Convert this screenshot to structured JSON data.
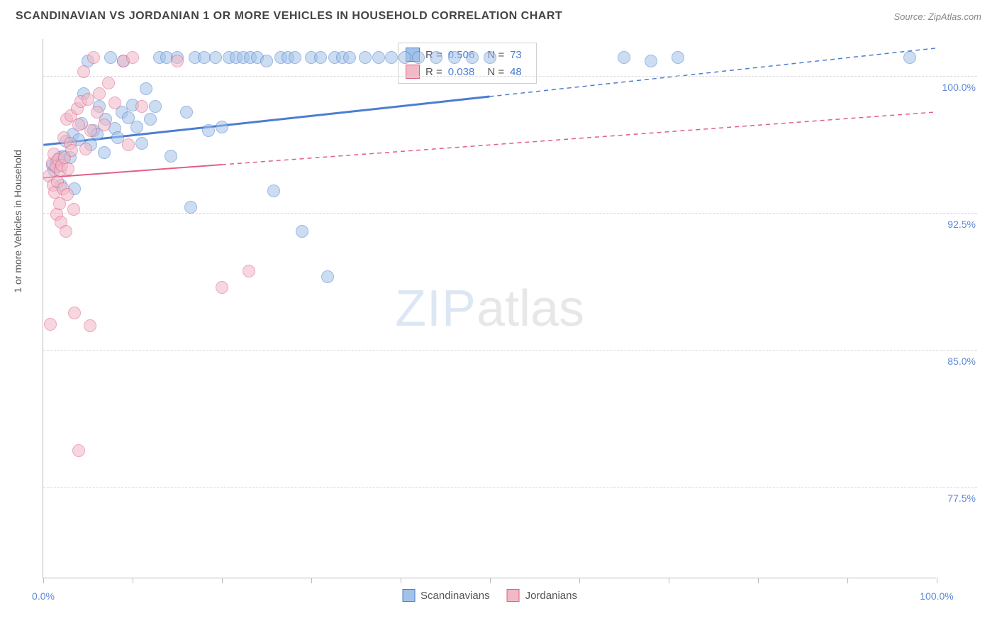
{
  "header": {
    "title": "SCANDINAVIAN VS JORDANIAN 1 OR MORE VEHICLES IN HOUSEHOLD CORRELATION CHART",
    "source": "Source: ZipAtlas.com"
  },
  "axes": {
    "y_title": "1 or more Vehicles in Household",
    "x_min": 0.0,
    "x_max": 100.0,
    "y_min": 72.5,
    "y_max": 102.0,
    "y_ticks": [
      77.5,
      85.0,
      92.5,
      100.0
    ],
    "y_tick_labels": [
      "77.5%",
      "85.0%",
      "92.5%",
      "100.0%"
    ],
    "x_ticks": [
      0,
      10,
      20,
      30,
      40,
      50,
      60,
      70,
      80,
      90,
      100
    ],
    "x_labels": [
      {
        "value": 0.0,
        "label": "0.0%"
      },
      {
        "value": 100.0,
        "label": "100.0%"
      }
    ]
  },
  "watermark": {
    "zip": "ZIP",
    "atlas": "atlas"
  },
  "series": [
    {
      "name": "Scandinavians",
      "color_fill": "#a3c2e8",
      "color_stroke": "#4b7ed0",
      "marker_radius": 9,
      "marker_opacity": 0.55,
      "R": "0.506",
      "N": "73",
      "trend": {
        "x1": 0,
        "y1": 96.2,
        "x2": 100,
        "y2": 101.5,
        "solid_until": 50,
        "width": 3
      },
      "points": [
        [
          1,
          95.1
        ],
        [
          1.2,
          94.8
        ],
        [
          1.5,
          95.3
        ],
        [
          1.8,
          95.5
        ],
        [
          2,
          94.0
        ],
        [
          2.3,
          95.6
        ],
        [
          2.5,
          96.4
        ],
        [
          3,
          95.5
        ],
        [
          3.3,
          96.8
        ],
        [
          3.5,
          93.8
        ],
        [
          4,
          96.5
        ],
        [
          4.3,
          97.4
        ],
        [
          4.5,
          99.0
        ],
        [
          5,
          100.8
        ],
        [
          5.3,
          96.2
        ],
        [
          5.6,
          97.0
        ],
        [
          6,
          96.8
        ],
        [
          6.3,
          98.3
        ],
        [
          6.8,
          95.8
        ],
        [
          7,
          97.6
        ],
        [
          7.5,
          101.0
        ],
        [
          8,
          97.1
        ],
        [
          8.3,
          96.6
        ],
        [
          8.8,
          98.0
        ],
        [
          9,
          100.8
        ],
        [
          9.5,
          97.7
        ],
        [
          10,
          98.4
        ],
        [
          10.5,
          97.2
        ],
        [
          11,
          96.3
        ],
        [
          11.5,
          99.3
        ],
        [
          12,
          97.6
        ],
        [
          12.5,
          98.3
        ],
        [
          13,
          101.0
        ],
        [
          13.8,
          101.0
        ],
        [
          14.3,
          95.6
        ],
        [
          15,
          101.0
        ],
        [
          16,
          98.0
        ],
        [
          16.5,
          92.8
        ],
        [
          17,
          101.0
        ],
        [
          18,
          101.0
        ],
        [
          18.5,
          97.0
        ],
        [
          19.3,
          101.0
        ],
        [
          20,
          97.2
        ],
        [
          20.8,
          101.0
        ],
        [
          21.6,
          101.0
        ],
        [
          22.4,
          101.0
        ],
        [
          23.2,
          101.0
        ],
        [
          24,
          101.0
        ],
        [
          25,
          100.8
        ],
        [
          25.8,
          93.7
        ],
        [
          26.6,
          101.0
        ],
        [
          27.4,
          101.0
        ],
        [
          28.2,
          101.0
        ],
        [
          29,
          91.5
        ],
        [
          30,
          101.0
        ],
        [
          31,
          101.0
        ],
        [
          31.8,
          89.0
        ],
        [
          32.6,
          101.0
        ],
        [
          33.5,
          101.0
        ],
        [
          34.3,
          101.0
        ],
        [
          36,
          101.0
        ],
        [
          37.5,
          101.0
        ],
        [
          39,
          101.0
        ],
        [
          40.5,
          101.0
        ],
        [
          42,
          101.0
        ],
        [
          44,
          101.0
        ],
        [
          46,
          101.0
        ],
        [
          48,
          101.0
        ],
        [
          50,
          101.0
        ],
        [
          65,
          101.0
        ],
        [
          68,
          100.8
        ],
        [
          71,
          101.0
        ],
        [
          97,
          101.0
        ]
      ]
    },
    {
      "name": "Jordanians",
      "color_fill": "#f2b8c6",
      "color_stroke": "#e05f84",
      "marker_radius": 9,
      "marker_opacity": 0.55,
      "R": "0.038",
      "N": "48",
      "trend": {
        "x1": 0,
        "y1": 94.4,
        "x2": 100,
        "y2": 98.0,
        "solid_until": 20,
        "width": 2
      },
      "points": [
        [
          0.6,
          94.5
        ],
        [
          0.8,
          86.4
        ],
        [
          1.0,
          95.2
        ],
        [
          1.1,
          94.0
        ],
        [
          1.2,
          95.7
        ],
        [
          1.3,
          93.6
        ],
        [
          1.4,
          95.0
        ],
        [
          1.5,
          92.4
        ],
        [
          1.6,
          94.2
        ],
        [
          1.7,
          95.4
        ],
        [
          1.8,
          93.0
        ],
        [
          1.9,
          94.8
        ],
        [
          2.0,
          92.0
        ],
        [
          2.1,
          95.1
        ],
        [
          2.2,
          93.8
        ],
        [
          2.3,
          96.6
        ],
        [
          2.4,
          95.5
        ],
        [
          2.5,
          91.5
        ],
        [
          2.6,
          97.6
        ],
        [
          2.7,
          93.5
        ],
        [
          2.8,
          94.9
        ],
        [
          3.0,
          96.3
        ],
        [
          3.1,
          97.8
        ],
        [
          3.2,
          95.9
        ],
        [
          3.4,
          92.7
        ],
        [
          3.8,
          98.2
        ],
        [
          4.0,
          97.3
        ],
        [
          4.2,
          98.6
        ],
        [
          4.5,
          100.2
        ],
        [
          4.8,
          96.0
        ],
        [
          5.0,
          98.7
        ],
        [
          5.3,
          97.0
        ],
        [
          5.6,
          101.0
        ],
        [
          6.0,
          98.0
        ],
        [
          6.3,
          99.0
        ],
        [
          6.8,
          97.3
        ],
        [
          7.3,
          99.6
        ],
        [
          8.0,
          98.5
        ],
        [
          9.0,
          100.8
        ],
        [
          9.5,
          96.2
        ],
        [
          10.0,
          101.0
        ],
        [
          11.0,
          98.3
        ],
        [
          3.5,
          87.0
        ],
        [
          4.0,
          79.5
        ],
        [
          5.2,
          86.3
        ],
        [
          15.0,
          100.8
        ],
        [
          20.0,
          88.4
        ],
        [
          23.0,
          89.3
        ]
      ]
    }
  ],
  "legend": {
    "r_label": "R =",
    "n_label": "N ="
  },
  "plot_style": {
    "background_color": "#ffffff",
    "grid_color": "#d8d8d8",
    "axis_color": "#bbbbbb",
    "tick_label_color": "#5d89d6",
    "axis_title_color": "#555555"
  }
}
